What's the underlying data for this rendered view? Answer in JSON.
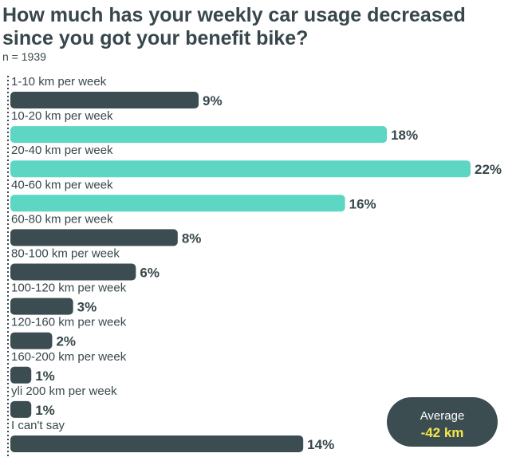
{
  "chart_data": {
    "type": "bar",
    "orientation": "horizontal",
    "title_line1": "How much has your weekly car usage decreased",
    "title_line2": "since you got your benefit bike?",
    "subtitle": "n = 1939",
    "categories": [
      "1-10 km per week",
      "10-20 km per week",
      "20-40 km per week",
      "40-60 km per week",
      "60-80 km per week",
      "80-100 km per week",
      "100-120 km per week",
      "120-160 km per week",
      "160-200 km per week",
      "yli 200 km per week",
      "I can't say"
    ],
    "values": [
      9,
      18,
      22,
      16,
      8,
      6,
      3,
      2,
      1,
      1,
      14
    ],
    "value_labels": [
      "9%",
      "18%",
      "22%",
      "16%",
      "8%",
      "6%",
      "3%",
      "2%",
      "1%",
      "1%",
      "14%"
    ],
    "highlighted": [
      false,
      true,
      true,
      true,
      false,
      false,
      false,
      false,
      false,
      false,
      false
    ],
    "unit": "%",
    "xlim": [
      0,
      22
    ],
    "grid": false,
    "legend": "none",
    "colors": {
      "default": "#3b4d51",
      "highlight": "#5dd6c4",
      "text": "#37474b"
    },
    "annotation": {
      "label": "Average",
      "value": "-42 km",
      "bg_color": "#3b4d51",
      "value_color": "#f4e64a"
    }
  }
}
